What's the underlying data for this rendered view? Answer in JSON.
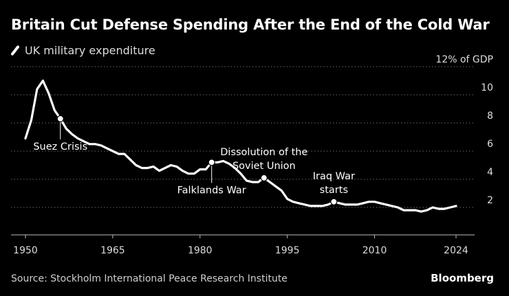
{
  "chart_data": {
    "type": "line",
    "title": "Britain Cut Defense Spending After the End of the Cold War",
    "legend": "UK military expenditure",
    "series": [
      {
        "name": "UK military expenditure",
        "x": [
          1950,
          1951,
          1952,
          1953,
          1954,
          1955,
          1956,
          1957,
          1958,
          1959,
          1960,
          1961,
          1962,
          1963,
          1964,
          1965,
          1966,
          1967,
          1968,
          1969,
          1970,
          1971,
          1972,
          1973,
          1974,
          1975,
          1976,
          1977,
          1978,
          1979,
          1980,
          1981,
          1982,
          1983,
          1984,
          1985,
          1986,
          1987,
          1988,
          1989,
          1990,
          1991,
          1992,
          1993,
          1994,
          1995,
          1996,
          1997,
          1998,
          1999,
          2000,
          2001,
          2002,
          2003,
          2004,
          2005,
          2006,
          2007,
          2008,
          2009,
          2010,
          2011,
          2012,
          2013,
          2014,
          2015,
          2016,
          2017,
          2018,
          2019,
          2020,
          2021,
          2022,
          2023,
          2024
        ],
        "y": [
          6.9,
          8.2,
          10.4,
          11.0,
          10.1,
          8.9,
          8.3,
          7.6,
          7.2,
          6.9,
          6.7,
          6.5,
          6.5,
          6.4,
          6.2,
          6.0,
          5.8,
          5.8,
          5.4,
          5.0,
          4.8,
          4.8,
          4.9,
          4.6,
          4.8,
          5.0,
          4.9,
          4.6,
          4.4,
          4.4,
          4.7,
          4.7,
          5.2,
          5.2,
          5.3,
          5.1,
          4.8,
          4.4,
          3.9,
          3.8,
          3.8,
          4.1,
          3.8,
          3.5,
          3.2,
          2.6,
          2.4,
          2.3,
          2.2,
          2.1,
          2.1,
          2.1,
          2.2,
          2.4,
          2.3,
          2.2,
          2.2,
          2.2,
          2.3,
          2.4,
          2.4,
          2.3,
          2.2,
          2.1,
          2.0,
          1.8,
          1.8,
          1.8,
          1.7,
          1.8,
          2.0,
          1.9,
          1.9,
          2.0,
          2.1
        ]
      }
    ],
    "xlim": [
      1950,
      2024
    ],
    "ylim": [
      0,
      12
    ],
    "x_ticks": [
      {
        "value": 1950,
        "label": "1950"
      },
      {
        "value": 1965,
        "label": "1965"
      },
      {
        "value": 1980,
        "label": "1980"
      },
      {
        "value": 1995,
        "label": "1995"
      },
      {
        "value": 2010,
        "label": "2010"
      },
      {
        "value": 2024,
        "label": "2024"
      }
    ],
    "y_ticks": [
      {
        "value": 12,
        "label": "12% of GDP"
      },
      {
        "value": 10,
        "label": "10"
      },
      {
        "value": 8,
        "label": "8"
      },
      {
        "value": 6,
        "label": "6"
      },
      {
        "value": 4,
        "label": "4"
      },
      {
        "value": 2,
        "label": "2"
      }
    ],
    "grid": "horizontal dotted",
    "annotations": [
      {
        "x": 1956,
        "y": 8.3,
        "lines": [
          "Suez Crisis"
        ],
        "placement": "below"
      },
      {
        "x": 1982,
        "y": 5.2,
        "lines": [
          "Falklands War"
        ],
        "placement": "below"
      },
      {
        "x": 1991,
        "y": 4.1,
        "lines": [
          "Dissolution of the",
          "Soviet Union"
        ],
        "placement": "above"
      },
      {
        "x": 2003,
        "y": 2.4,
        "lines": [
          "Iraq War",
          "starts"
        ],
        "placement": "above"
      }
    ]
  },
  "footer": {
    "source": "Source: Stockholm International Peace Research Institute",
    "brand": "Bloomberg"
  },
  "colors": {
    "background": "#000000",
    "line": "#ffffff",
    "grid": "#6a6a6a",
    "text": "#dddddd"
  }
}
